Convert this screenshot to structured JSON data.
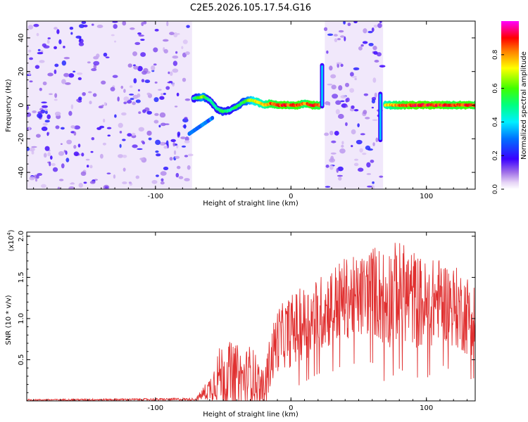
{
  "title": "C2E5.2026.105.17.54.G16",
  "chart_data": [
    {
      "type": "heatmap",
      "xlabel": "Height of straight line (km)",
      "ylabel": "Frequency (Hz)",
      "xlim": [
        -195,
        136
      ],
      "ylim": [
        -50,
        50
      ],
      "x_ticks": [
        -100,
        0,
        100
      ],
      "y_ticks": [
        -40,
        -20,
        0,
        20,
        40
      ],
      "colorbar": {
        "label": "Normalized spectral amplitude",
        "range": [
          0,
          1
        ],
        "ticks": [
          "0.0",
          "0.2",
          "0.4",
          "0.6",
          "0.8"
        ]
      },
      "noise_regions": [
        {
          "x": [
            -195,
            -73
          ]
        },
        {
          "x": [
            25,
            68
          ]
        }
      ],
      "ridge": {
        "x": [
          -72,
          -65,
          -60,
          -55,
          -50,
          -45,
          -40,
          -35,
          -30,
          -25,
          -20,
          -15,
          -10,
          -5,
          0,
          5,
          10,
          15,
          20,
          70,
          80,
          90,
          100,
          110,
          120,
          130,
          136
        ],
        "y": [
          4,
          5,
          3,
          -2,
          -4,
          -3,
          -1,
          2,
          3,
          2,
          0,
          1,
          0,
          0,
          0,
          0,
          1,
          0,
          0,
          0,
          0,
          0,
          0,
          0,
          0,
          0,
          0
        ],
        "level": [
          0.5,
          0.7,
          0.5,
          0.5,
          0.6,
          0.5,
          0.6,
          0.6,
          0.7,
          0.8,
          0.8,
          0.9,
          0.9,
          0.95,
          0.9,
          0.95,
          0.85,
          0.95,
          0.9,
          0.8,
          0.9,
          0.95,
          0.95,
          0.95,
          0.9,
          0.95,
          0.9
        ]
      },
      "spikes": [
        {
          "x": 23,
          "y": [
            -2,
            25
          ]
        },
        {
          "x": 66,
          "y": [
            -22,
            8
          ]
        }
      ]
    },
    {
      "type": "line",
      "xlabel": "Height of straight line (km)",
      "ylabel": "SNR (10 * v/v)",
      "y_multiplier_label": "(x10",
      "y_multiplier_exp": "4",
      "xlim": [
        -195,
        136
      ],
      "ylim": [
        0,
        20500
      ],
      "x_ticks": [
        -100,
        0,
        100
      ],
      "y_ticks": [
        5000,
        10000,
        15000,
        20000
      ],
      "y_tick_labels": [
        "0.5",
        "1.0",
        "1.5",
        "2.0"
      ],
      "line_color": "#e03030",
      "envelope": {
        "x": [
          -195,
          -70,
          -60,
          -55,
          -50,
          -45,
          -40,
          -35,
          -30,
          -25,
          -20,
          -15,
          -10,
          -5,
          0,
          10,
          20,
          30,
          40,
          50,
          60,
          70,
          80,
          90,
          100,
          110,
          120,
          130,
          136
        ],
        "mean": [
          120,
          200,
          1500,
          2800,
          3500,
          3200,
          3400,
          2500,
          3500,
          2500,
          1500,
          5000,
          7500,
          8000,
          8500,
          9500,
          10500,
          11500,
          12500,
          12500,
          13500,
          12500,
          13500,
          12500,
          11500,
          12500,
          11500,
          10500,
          10000
        ],
        "amp": [
          80,
          150,
          1500,
          3000,
          4000,
          4000,
          3500,
          3500,
          3500,
          3000,
          2000,
          3500,
          4000,
          4000,
          4500,
          4500,
          4500,
          5000,
          5000,
          5000,
          5500,
          6500,
          6000,
          6000,
          5500,
          5000,
          5000,
          5000,
          4500
        ]
      }
    }
  ]
}
